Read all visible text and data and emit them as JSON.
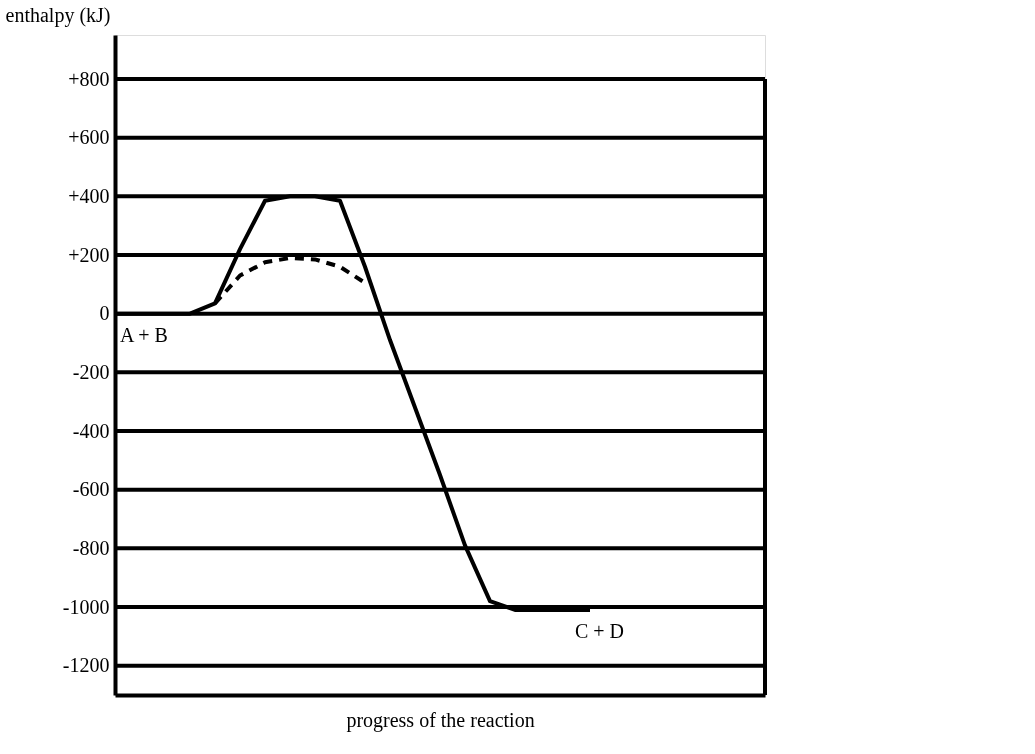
{
  "chart_data": {
    "type": "line",
    "xlabel": "progress of the reaction",
    "ylabel": "enthalpy (kJ)",
    "categories": [
      null,
      null,
      null,
      null,
      null,
      null,
      null,
      null,
      null,
      null,
      null,
      null,
      null,
      null,
      null,
      null,
      null,
      null,
      null,
      null,
      null,
      null,
      null,
      null,
      null,
      null,
      null
    ],
    "series": [
      {
        "color": "#000000",
        "line_style": "solid",
        "values": [
          0,
          0,
          0,
          0,
          35,
          220,
          385,
          400,
          400,
          385,
          160,
          -90,
          -320,
          -550,
          -790,
          -980,
          -1010,
          -1010,
          -1010,
          -1010,
          null,
          null,
          null,
          null,
          null,
          null,
          null
        ]
      },
      {
        "color": "#000000",
        "line_style": "dashed",
        "values": [
          null,
          null,
          null,
          null,
          35,
          130,
          175,
          190,
          185,
          160,
          105,
          null,
          null,
          null,
          null,
          null,
          null,
          null,
          null,
          null,
          null,
          null,
          null,
          null,
          null,
          null,
          null
        ]
      }
    ],
    "annotations": [
      "A + B",
      "C + D"
    ],
    "ylim": [
      -1300,
      950
    ],
    "yticks": [
      {
        "value": -1200,
        "label": "-1200"
      },
      {
        "value": -1000,
        "label": "-1000"
      },
      {
        "value": -800,
        "label": "-800"
      },
      {
        "value": -600,
        "label": "-600"
      },
      {
        "value": -400,
        "label": "-400"
      },
      {
        "value": -200,
        "label": "-200"
      },
      {
        "value": 0,
        "label": "0"
      },
      {
        "value": 200,
        "label": "+200"
      },
      {
        "value": 400,
        "label": "+400"
      },
      {
        "value": 600,
        "label": "+600"
      },
      {
        "value": 800,
        "label": "+800"
      }
    ],
    "grid": "y",
    "tick_labels": "y",
    "marker": "none"
  }
}
